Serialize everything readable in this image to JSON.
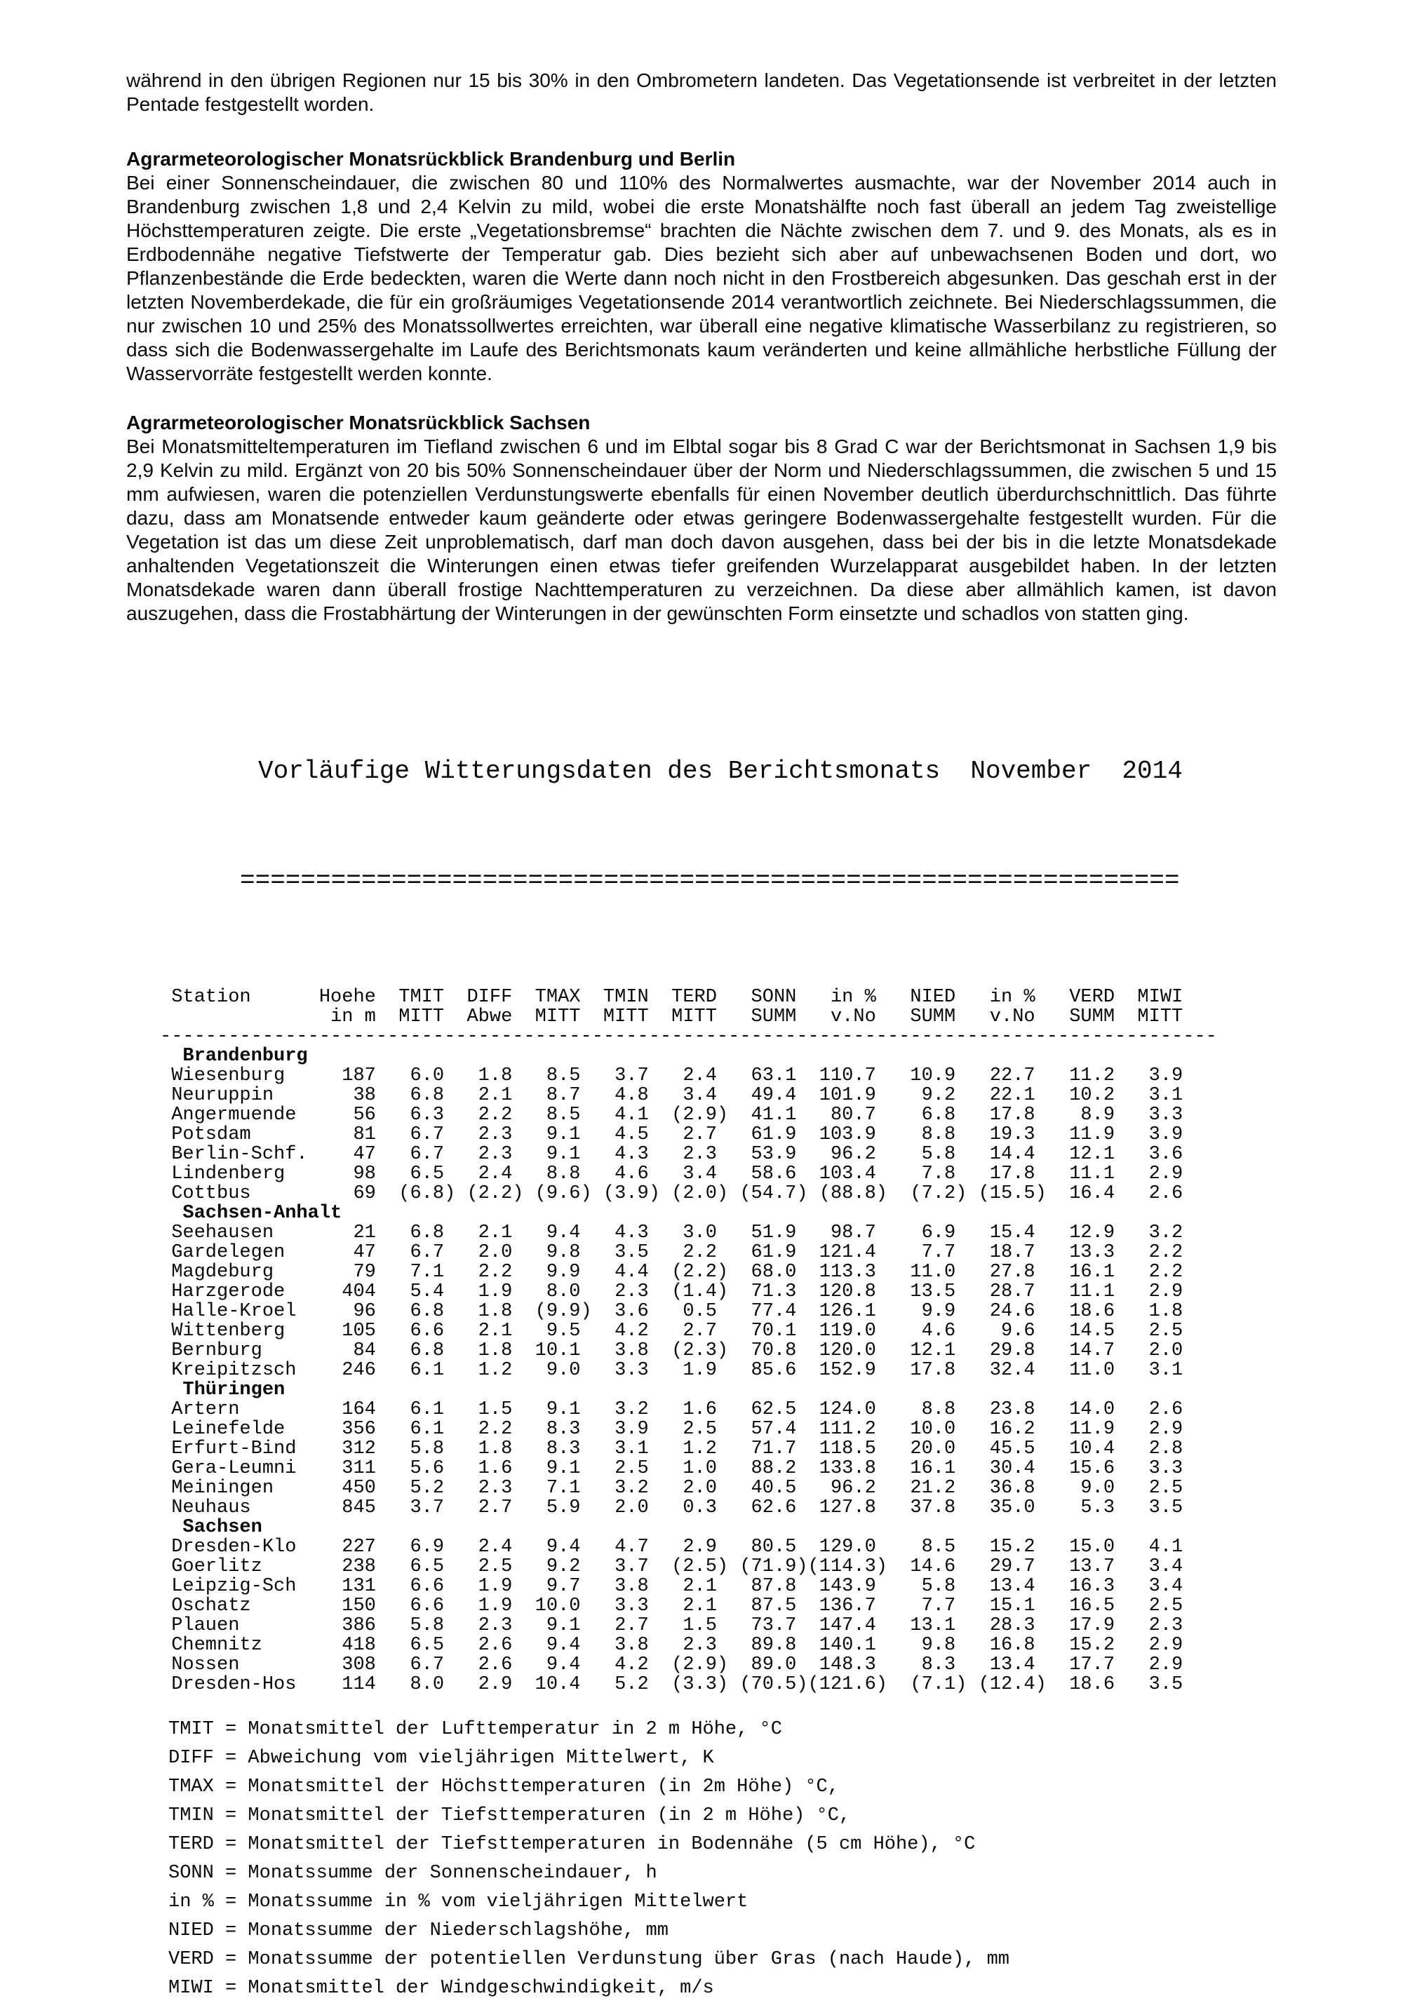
{
  "intro": {
    "paragraph": "während in den übrigen Regionen nur 15 bis 30% in den Ombrometern landeten. Das Vegetationsende ist verbreitet in der letzten Pentade festgestellt worden."
  },
  "section_brandenburg": {
    "heading": "Agrarmeteorologischer Monatsrückblick Brandenburg und Berlin",
    "body": "Bei einer Sonnenscheindauer, die zwischen 80 und 110% des Normalwertes ausmachte, war der November 2014 auch in Brandenburg zwischen 1,8 und 2,4 Kelvin zu mild, wobei die erste Monatshälfte noch fast überall an jedem Tag zweistellige Höchsttemperaturen zeigte. Die erste „Vegetationsbremse“ brachten die Nächte zwischen dem 7. und 9. des Monats, als es in Erdbodennähe negative Tiefstwerte der Temperatur gab. Dies bezieht sich aber auf unbewachsenen Boden und dort, wo Pflanzenbestände die Erde bedeckten, waren die Werte dann noch nicht in den Frostbereich abgesunken. Das geschah erst in der letzten Novemberdekade, die für ein großräumiges Vegetationsende 2014 verantwortlich zeichnete. Bei Niederschlagssummen, die nur zwischen 10 und 25% des Monatssollwertes erreichten, war überall eine negative klimatische Wasserbilanz zu registrieren, so dass sich die Bodenwassergehalte im Laufe des Berichtsmonats kaum veränderten und keine allmähliche herbstliche Füllung der Wasservorräte festgestellt werden konnte."
  },
  "section_sachsen": {
    "heading": "Agrarmeteorologischer Monatsrückblick Sachsen",
    "body": "Bei Monatsmitteltemperaturen im Tiefland zwischen 6 und im Elbtal sogar bis 8 Grad C war der Berichtsmonat in Sachsen 1,9 bis 2,9 Kelvin zu mild. Ergänzt von 20 bis 50% Sonnenscheindauer über der Norm und Niederschlagssummen, die zwischen 5 und 15 mm aufwiesen, waren die potenziellen Verdunstungswerte ebenfalls für einen November deutlich überdurchschnittlich. Das führte dazu, dass am Monatsende entweder kaum geänderte oder etwas geringere Bodenwassergehalte festgestellt wurden. Für die Vegetation ist das um diese Zeit unproblematisch, darf man doch davon ausgehen, dass bei der bis in die letzte Monatsdekade anhaltenden Vegetationszeit die Winterungen einen etwas tiefer greifenden Wurzelapparat ausgebildet haben. In der letzten Monatsdekade waren dann überall frostige Nachttemperaturen zu verzeichnen. Da diese aber allmählich kamen, ist davon auszugehen, dass die Frostabhärtung der Winterungen in der gewünschten Form einsetzte und schadlos von statten ging."
  },
  "table": {
    "title": "Vorläufige Witterungsdaten des Berichtsmonats  November  2014",
    "header_row1": [
      "Station",
      "Hoehe",
      "TMIT",
      "DIFF",
      "TMAX",
      "TMIN",
      "TERD",
      "SONN",
      "in %",
      "NIED",
      "in %",
      "VERD",
      "MIWI"
    ],
    "header_row2": [
      "",
      "in m",
      "MITT",
      "Abwe",
      "MITT",
      "MITT",
      "MITT",
      "SUMM",
      "v.No",
      "SUMM",
      "v.No",
      "SUMM",
      "MITT"
    ],
    "regions": [
      {
        "name": "Brandenburg",
        "rows": [
          [
            "Wiesenburg",
            "187",
            "6.0",
            "1.8",
            "8.5",
            "3.7",
            "2.4",
            "63.1",
            "110.7",
            "10.9",
            "22.7",
            "11.2",
            "3.9"
          ],
          [
            "Neuruppin",
            "38",
            "6.8",
            "2.1",
            "8.7",
            "4.8",
            "3.4",
            "49.4",
            "101.9",
            "9.2",
            "22.1",
            "10.2",
            "3.1"
          ],
          [
            "Angermuende",
            "56",
            "6.3",
            "2.2",
            "8.5",
            "4.1",
            "(2.9)",
            "41.1",
            "80.7",
            "6.8",
            "17.8",
            "8.9",
            "3.3"
          ],
          [
            "Potsdam",
            "81",
            "6.7",
            "2.3",
            "9.1",
            "4.5",
            "2.7",
            "61.9",
            "103.9",
            "8.8",
            "19.3",
            "11.9",
            "3.9"
          ],
          [
            "Berlin-Schf.",
            "47",
            "6.7",
            "2.3",
            "9.1",
            "4.3",
            "2.3",
            "53.9",
            "96.2",
            "5.8",
            "14.4",
            "12.1",
            "3.6"
          ],
          [
            "Lindenberg",
            "98",
            "6.5",
            "2.4",
            "8.8",
            "4.6",
            "3.4",
            "58.6",
            "103.4",
            "7.8",
            "17.8",
            "11.1",
            "2.9"
          ],
          [
            "Cottbus",
            "69",
            "(6.8)",
            "(2.2)",
            "(9.6)",
            "(3.9)",
            "(2.0)",
            "(54.7)",
            "(88.8)",
            "(7.2)",
            "(15.5)",
            "16.4",
            "2.6"
          ]
        ]
      },
      {
        "name": "Sachsen-Anhalt",
        "rows": [
          [
            "Seehausen",
            "21",
            "6.8",
            "2.1",
            "9.4",
            "4.3",
            "3.0",
            "51.9",
            "98.7",
            "6.9",
            "15.4",
            "12.9",
            "3.2"
          ],
          [
            "Gardelegen",
            "47",
            "6.7",
            "2.0",
            "9.8",
            "3.5",
            "2.2",
            "61.9",
            "121.4",
            "7.7",
            "18.7",
            "13.3",
            "2.2"
          ],
          [
            "Magdeburg",
            "79",
            "7.1",
            "2.2",
            "9.9",
            "4.4",
            "(2.2)",
            "68.0",
            "113.3",
            "11.0",
            "27.8",
            "16.1",
            "2.2"
          ],
          [
            "Harzgerode",
            "404",
            "5.4",
            "1.9",
            "8.0",
            "2.3",
            "(1.4)",
            "71.3",
            "120.8",
            "13.5",
            "28.7",
            "11.1",
            "2.9"
          ],
          [
            "Halle-Kroel",
            "96",
            "6.8",
            "1.8",
            "(9.9)",
            "3.6",
            "0.5",
            "77.4",
            "126.1",
            "9.9",
            "24.6",
            "18.6",
            "1.8"
          ],
          [
            "Wittenberg",
            "105",
            "6.6",
            "2.1",
            "9.5",
            "4.2",
            "2.7",
            "70.1",
            "119.0",
            "4.6",
            "9.6",
            "14.5",
            "2.5"
          ],
          [
            "Bernburg",
            "84",
            "6.8",
            "1.8",
            "10.1",
            "3.8",
            "(2.3)",
            "70.8",
            "120.0",
            "12.1",
            "29.8",
            "14.7",
            "2.0"
          ],
          [
            "Kreipitzsch",
            "246",
            "6.1",
            "1.2",
            "9.0",
            "3.3",
            "1.9",
            "85.6",
            "152.9",
            "17.8",
            "32.4",
            "11.0",
            "3.1"
          ]
        ]
      },
      {
        "name": "Thüringen",
        "rows": [
          [
            "Artern",
            "164",
            "6.1",
            "1.5",
            "9.1",
            "3.2",
            "1.6",
            "62.5",
            "124.0",
            "8.8",
            "23.8",
            "14.0",
            "2.6"
          ],
          [
            "Leinefelde",
            "356",
            "6.1",
            "2.2",
            "8.3",
            "3.9",
            "2.5",
            "57.4",
            "111.2",
            "10.0",
            "16.2",
            "11.9",
            "2.9"
          ],
          [
            "Erfurt-Bind",
            "312",
            "5.8",
            "1.8",
            "8.3",
            "3.1",
            "1.2",
            "71.7",
            "118.5",
            "20.0",
            "45.5",
            "10.4",
            "2.8"
          ],
          [
            "Gera-Leumni",
            "311",
            "5.6",
            "1.6",
            "9.1",
            "2.5",
            "1.0",
            "88.2",
            "133.8",
            "16.1",
            "30.4",
            "15.6",
            "3.3"
          ],
          [
            "Meiningen",
            "450",
            "5.2",
            "2.3",
            "7.1",
            "3.2",
            "2.0",
            "40.5",
            "96.2",
            "21.2",
            "36.8",
            "9.0",
            "2.5"
          ],
          [
            "Neuhaus",
            "845",
            "3.7",
            "2.7",
            "5.9",
            "2.0",
            "0.3",
            "62.6",
            "127.8",
            "37.8",
            "35.0",
            "5.3",
            "3.5"
          ]
        ]
      },
      {
        "name": "Sachsen",
        "rows": [
          [
            "Dresden-Klo",
            "227",
            "6.9",
            "2.4",
            "9.4",
            "4.7",
            "2.9",
            "80.5",
            "129.0",
            "8.5",
            "15.2",
            "15.0",
            "4.1"
          ],
          [
            "Goerlitz",
            "238",
            "6.5",
            "2.5",
            "9.2",
            "3.7",
            "(2.5)",
            "(71.9)",
            "(114.3)",
            "14.6",
            "29.7",
            "13.7",
            "3.4"
          ],
          [
            "Leipzig-Sch",
            "131",
            "6.6",
            "1.9",
            "9.7",
            "3.8",
            "2.1",
            "87.8",
            "143.9",
            "5.8",
            "13.4",
            "16.3",
            "3.4"
          ],
          [
            "Oschatz",
            "150",
            "6.6",
            "1.9",
            "10.0",
            "3.3",
            "2.1",
            "87.5",
            "136.7",
            "7.7",
            "15.1",
            "16.5",
            "2.5"
          ],
          [
            "Plauen",
            "386",
            "5.8",
            "2.3",
            "9.1",
            "2.7",
            "1.5",
            "73.7",
            "147.4",
            "13.1",
            "28.3",
            "17.9",
            "2.3"
          ],
          [
            "Chemnitz",
            "418",
            "6.5",
            "2.6",
            "9.4",
            "3.8",
            "2.3",
            "89.8",
            "140.1",
            "9.8",
            "16.8",
            "15.2",
            "2.9"
          ],
          [
            "Nossen",
            "308",
            "6.7",
            "2.6",
            "9.4",
            "4.2",
            "(2.9)",
            "89.0",
            "148.3",
            "8.3",
            "13.4",
            "17.7",
            "2.9"
          ],
          [
            "Dresden-Hos",
            "114",
            "8.0",
            "2.9",
            "10.4",
            "5.2",
            "(3.3)",
            "(70.5)",
            "(121.6)",
            "(7.1)",
            "(12.4)",
            "18.6",
            "3.5"
          ]
        ]
      }
    ]
  },
  "legend": [
    "TMIT = Monatsmittel der Lufttemperatur in 2 m Höhe, °C",
    "DIFF = Abweichung vom vieljährigen Mittelwert, K",
    "TMAX = Monatsmittel der Höchsttemperaturen (in 2m Höhe) °C,",
    "TMIN = Monatsmittel der Tiefsttemperaturen (in 2 m Höhe) °C,",
    "TERD = Monatsmittel der Tiefsttemperaturen in Bodennähe (5 cm Höhe), °C",
    "SONN = Monatssumme der Sonnenscheindauer, h",
    "in % = Monatssumme in % vom vieljährigen Mittelwert",
    "NIED = Monatssumme der Niederschlagshöhe, mm",
    "VERD = Monatssumme der potentiellen Verdunstung über Gras (nach Haude), mm",
    "MIWI = Monatsmittel der Windgeschwindigkeit, m/s"
  ]
}
